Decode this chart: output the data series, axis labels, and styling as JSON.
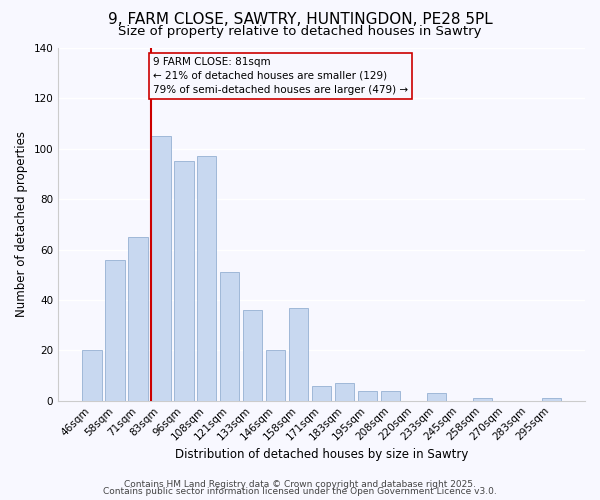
{
  "title": "9, FARM CLOSE, SAWTRY, HUNTINGDON, PE28 5PL",
  "subtitle": "Size of property relative to detached houses in Sawtry",
  "xlabel": "Distribution of detached houses by size in Sawtry",
  "ylabel": "Number of detached properties",
  "categories": [
    "46sqm",
    "58sqm",
    "71sqm",
    "83sqm",
    "96sqm",
    "108sqm",
    "121sqm",
    "133sqm",
    "146sqm",
    "158sqm",
    "171sqm",
    "183sqm",
    "195sqm",
    "208sqm",
    "220sqm",
    "233sqm",
    "245sqm",
    "258sqm",
    "270sqm",
    "283sqm",
    "295sqm"
  ],
  "values": [
    20,
    56,
    65,
    105,
    95,
    97,
    51,
    36,
    20,
    37,
    6,
    7,
    4,
    4,
    0,
    3,
    0,
    1,
    0,
    0,
    1
  ],
  "bar_color": "#c8d8f0",
  "bar_edge_color": "#a0b8d8",
  "vline_index": 3,
  "vline_color": "#cc0000",
  "ylim": [
    0,
    140
  ],
  "yticks": [
    0,
    20,
    40,
    60,
    80,
    100,
    120,
    140
  ],
  "annotation_title": "9 FARM CLOSE: 81sqm",
  "annotation_line1": "← 21% of detached houses are smaller (129)",
  "annotation_line2": "79% of semi-detached houses are larger (479) →",
  "footer1": "Contains HM Land Registry data © Crown copyright and database right 2025.",
  "footer2": "Contains public sector information licensed under the Open Government Licence v3.0.",
  "background_color": "#f8f8ff",
  "grid_color": "#ffffff",
  "title_fontsize": 11,
  "subtitle_fontsize": 9.5,
  "axis_label_fontsize": 8.5,
  "tick_fontsize": 7.5,
  "annotation_fontsize": 7.5,
  "footer_fontsize": 6.5
}
